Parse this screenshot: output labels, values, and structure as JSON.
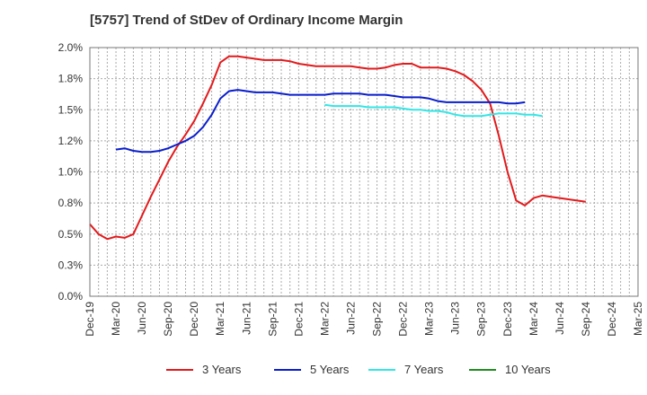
{
  "title": "[5757]  Trend of StDev of Ordinary Income Margin",
  "chart_data": {
    "type": "line",
    "title": "[5757]  Trend of StDev of Ordinary Income Margin",
    "xlabel": "",
    "ylabel": "",
    "ylim": [
      0,
      2.0
    ],
    "y_ticks": [
      "0.0%",
      "0.3%",
      "0.5%",
      "0.8%",
      "1.0%",
      "1.2%",
      "1.5%",
      "1.8%",
      "2.0%"
    ],
    "x_ticks": [
      "Dec-19",
      "Mar-20",
      "Jun-20",
      "Sep-20",
      "Dec-20",
      "Mar-21",
      "Jun-21",
      "Sep-21",
      "Dec-21",
      "Mar-22",
      "Jun-22",
      "Sep-22",
      "Dec-22",
      "Mar-23",
      "Jun-23",
      "Sep-23",
      "Dec-23",
      "Mar-24",
      "Jun-24",
      "Sep-24",
      "Dec-24",
      "Mar-25"
    ],
    "grid": true,
    "legend_position": "bottom",
    "series": [
      {
        "name": "3 Years",
        "color": "#e31a1c",
        "values": [
          0.58,
          0.5,
          0.46,
          0.48,
          0.47,
          0.5,
          0.65,
          0.8,
          0.94,
          1.08,
          1.2,
          1.3,
          1.41,
          1.55,
          1.7,
          1.88,
          1.93,
          1.93,
          1.92,
          1.91,
          1.9,
          1.9,
          1.9,
          1.89,
          1.87,
          1.86,
          1.85,
          1.85,
          1.85,
          1.85,
          1.85,
          1.84,
          1.83,
          1.83,
          1.84,
          1.86,
          1.87,
          1.87,
          1.84,
          1.84,
          1.84,
          1.83,
          1.81,
          1.78,
          1.73,
          1.66,
          1.55,
          1.29,
          1.0,
          0.77,
          0.73,
          0.79,
          0.81,
          0.8,
          0.79,
          0.78,
          0.77,
          0.76
        ],
        "x_start": "Dec-19"
      },
      {
        "name": "5 Years",
        "color": "#0a1ecc",
        "values": [
          1.18,
          1.19,
          1.17,
          1.16,
          1.16,
          1.17,
          1.19,
          1.22,
          1.25,
          1.29,
          1.36,
          1.46,
          1.59,
          1.65,
          1.66,
          1.65,
          1.64,
          1.64,
          1.64,
          1.63,
          1.62,
          1.62,
          1.62,
          1.62,
          1.62,
          1.63,
          1.63,
          1.63,
          1.63,
          1.62,
          1.62,
          1.62,
          1.61,
          1.6,
          1.6,
          1.6,
          1.59,
          1.57,
          1.56,
          1.56,
          1.56,
          1.56,
          1.56,
          1.56,
          1.56,
          1.55,
          1.55,
          1.56
        ],
        "x_start": "Mar-20"
      },
      {
        "name": "7 Years",
        "color": "#33e6e6",
        "values": [
          1.54,
          1.53,
          1.53,
          1.53,
          1.53,
          1.52,
          1.52,
          1.52,
          1.52,
          1.51,
          1.5,
          1.5,
          1.49,
          1.49,
          1.48,
          1.46,
          1.45,
          1.45,
          1.45,
          1.46,
          1.47,
          1.47,
          1.47,
          1.46,
          1.46,
          1.45
        ],
        "x_start": "Mar-22"
      },
      {
        "name": "10 Years",
        "color": "#228b22",
        "values": [],
        "x_start": ""
      }
    ]
  }
}
